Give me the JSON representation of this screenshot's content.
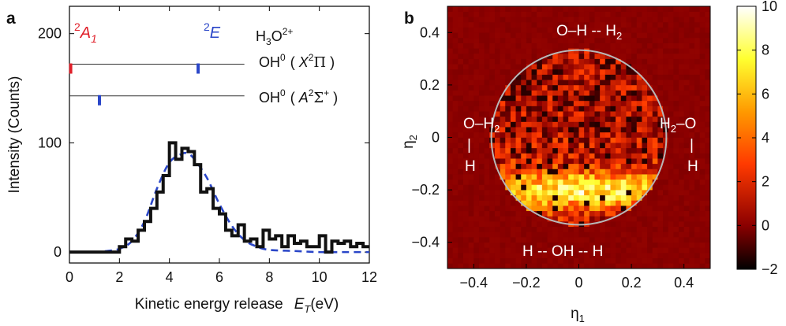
{
  "panel_a": {
    "panel_label": "a",
    "xlabel_text": "Kinetic energy release",
    "xlabel_symbol": "E",
    "xlabel_sub": "T",
    "xlabel_unit": "(eV)",
    "ylabel": "Intensity (Counts)",
    "state_labels": {
      "a1_main": "A",
      "a1_sup": "2",
      "a1_sub": "1",
      "e_main": "E",
      "e_sup": "2",
      "ion_main": "H",
      "ion_sub": "3",
      "ion_o": "O",
      "ion_sup": "2+",
      "x_pre": "OH",
      "x_pre_sup": "0",
      "x_paren_l": "(",
      "x_sym": "X",
      "x_sym_sup": "2",
      "x_term": "Π",
      "x_paren_r": ")",
      "b_pre": "OH",
      "b_pre_sup": "0",
      "b_paren_l": "(",
      "b_sym": "A",
      "b_sym_sup": "2",
      "b_term": "Σ",
      "b_term_sup": "+",
      "b_paren_r": ")"
    },
    "colors": {
      "red": "#e0202a",
      "blue": "#2a46c8",
      "hist": "#111111",
      "fit": "#2a46c8"
    }
  },
  "panel_b": {
    "panel_label": "b",
    "xlabel_main": "η",
    "xlabel_sub": "1",
    "ylabel_main": "η",
    "ylabel_sub": "2",
    "annotations": {
      "top_a": "O–H -- H",
      "top_sub": "2",
      "left_a": "O–H",
      "left_sub": "2",
      "left_bar": "|",
      "left_h": "H",
      "right_a": "H",
      "right_sub": "2",
      "right_b": "–O",
      "right_bar": "|",
      "right_h": "H",
      "bottom": "H -- OH -- H"
    }
  },
  "chart_data": [
    {
      "type": "line",
      "title": "",
      "xlabel": "Kinetic energy release E_T (eV)",
      "ylabel": "Intensity (Counts)",
      "xlim": [
        0,
        12
      ],
      "ylim": [
        -10,
        225
      ],
      "xticks": [
        0,
        2,
        4,
        6,
        8,
        10,
        12
      ],
      "yticks": [
        0,
        100,
        200
      ],
      "series": [
        {
          "style": "step",
          "x": [
            0,
            0.25,
            0.5,
            0.75,
            1.0,
            1.25,
            1.5,
            1.75,
            2.0,
            2.25,
            2.5,
            2.75,
            3.0,
            3.25,
            3.5,
            3.75,
            4.0,
            4.25,
            4.5,
            4.75,
            5.0,
            5.25,
            5.5,
            5.75,
            6.0,
            6.25,
            6.5,
            6.75,
            7.0,
            7.25,
            7.5,
            7.75,
            8.0,
            8.25,
            8.5,
            8.75,
            9.0,
            9.25,
            9.5,
            9.75,
            10.0,
            10.25,
            10.5,
            10.75,
            11.0,
            11.25,
            11.5,
            11.75
          ],
          "y": [
            0,
            0,
            0,
            0,
            0,
            0,
            0,
            0,
            5,
            12,
            10,
            20,
            28,
            40,
            55,
            70,
            100,
            85,
            95,
            92,
            80,
            55,
            58,
            40,
            35,
            20,
            15,
            25,
            10,
            12,
            5,
            20,
            12,
            15,
            5,
            15,
            8,
            10,
            5,
            5,
            15,
            0,
            10,
            8,
            10,
            5,
            8,
            5
          ]
        },
        {
          "style": "dashed-fit",
          "x": [
            0,
            1,
            1.5,
            2,
            2.5,
            3,
            3.5,
            4,
            4.5,
            4.75,
            5,
            5.5,
            6,
            6.5,
            7,
            7.5,
            8,
            9,
            10,
            11,
            12
          ],
          "y": [
            0,
            0,
            1,
            3,
            10,
            28,
            58,
            82,
            90,
            90,
            85,
            68,
            44,
            24,
            11,
            5,
            2,
            1,
            0,
            0,
            0
          ]
        }
      ],
      "state_markers": {
        "X2Pi_line": {
          "y_level": 172,
          "ticks": [
            {
              "x": 0.05,
              "color": "red"
            },
            {
              "x": 5.15,
              "color": "blue"
            }
          ]
        },
        "A2Sigma_line": {
          "y_level": 143,
          "ticks": [
            {
              "x": 1.2,
              "color": "blue"
            }
          ]
        }
      }
    },
    {
      "type": "heatmap",
      "title": "",
      "xlabel": "η1",
      "ylabel": "η2",
      "xlim": [
        -0.5,
        0.5
      ],
      "ylim": [
        -0.5,
        0.5
      ],
      "xticks": [
        -0.4,
        -0.2,
        0,
        0.2,
        0.4
      ],
      "yticks": [
        -0.4,
        -0.2,
        0,
        0.2,
        0.4
      ],
      "bins": 50,
      "circle_radius": 0.333,
      "colorbar": {
        "min": -2,
        "max": 10,
        "ticks": [
          -2,
          0,
          2,
          4,
          6,
          8,
          10
        ]
      },
      "description_free_model": {
        "background_value": 0,
        "upper_half_mean": 0.8,
        "band_center_eta2": -0.2,
        "band_peak": 6.5,
        "band_width": 0.07
      }
    }
  ]
}
